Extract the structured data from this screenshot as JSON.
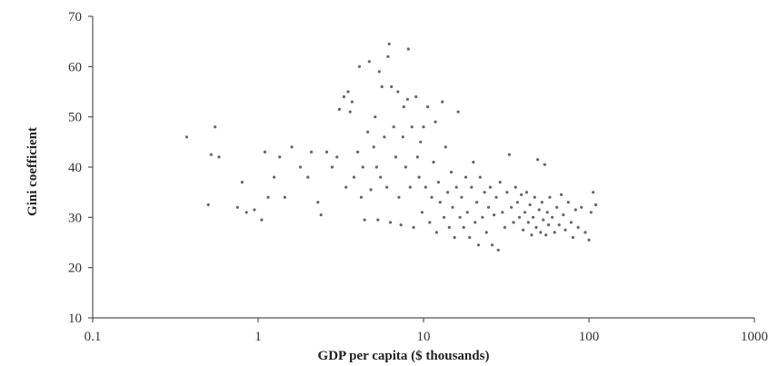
{
  "chart_data": {
    "type": "scatter",
    "title": "",
    "xlabel": "GDP per capita ($ thousands)",
    "ylabel": "Gini coefficient",
    "xscale": "log",
    "xlim": [
      0.1,
      1000
    ],
    "ylim": [
      10,
      70
    ],
    "x_ticks": [
      0.1,
      1,
      10,
      100,
      1000
    ],
    "x_tick_labels": [
      "0.1",
      "1",
      "10",
      "100",
      "1000"
    ],
    "y_ticks": [
      10,
      20,
      30,
      40,
      50,
      60,
      70
    ],
    "y_tick_labels": [
      "10",
      "20",
      "30",
      "40",
      "50",
      "60",
      "70"
    ],
    "grid": false,
    "legend": "none",
    "marker_color": "#666666",
    "points": [
      {
        "x": 0.37,
        "y": 46
      },
      {
        "x": 0.5,
        "y": 32.5
      },
      {
        "x": 0.52,
        "y": 42.5
      },
      {
        "x": 0.55,
        "y": 48
      },
      {
        "x": 0.58,
        "y": 42
      },
      {
        "x": 0.75,
        "y": 32
      },
      {
        "x": 0.8,
        "y": 37
      },
      {
        "x": 0.85,
        "y": 31
      },
      {
        "x": 0.95,
        "y": 31.5
      },
      {
        "x": 1.05,
        "y": 29.5
      },
      {
        "x": 1.1,
        "y": 43
      },
      {
        "x": 1.15,
        "y": 34
      },
      {
        "x": 1.25,
        "y": 38
      },
      {
        "x": 1.35,
        "y": 42
      },
      {
        "x": 1.45,
        "y": 34
      },
      {
        "x": 1.6,
        "y": 44
      },
      {
        "x": 1.8,
        "y": 40
      },
      {
        "x": 2.0,
        "y": 38
      },
      {
        "x": 2.1,
        "y": 43
      },
      {
        "x": 2.3,
        "y": 33
      },
      {
        "x": 2.4,
        "y": 30.5
      },
      {
        "x": 2.6,
        "y": 43
      },
      {
        "x": 2.8,
        "y": 40
      },
      {
        "x": 3.0,
        "y": 42
      },
      {
        "x": 3.1,
        "y": 51.5
      },
      {
        "x": 3.3,
        "y": 54
      },
      {
        "x": 3.4,
        "y": 36
      },
      {
        "x": 3.5,
        "y": 55
      },
      {
        "x": 3.6,
        "y": 51
      },
      {
        "x": 3.7,
        "y": 53
      },
      {
        "x": 3.8,
        "y": 38
      },
      {
        "x": 4.0,
        "y": 43
      },
      {
        "x": 4.1,
        "y": 60
      },
      {
        "x": 4.2,
        "y": 34
      },
      {
        "x": 4.3,
        "y": 40
      },
      {
        "x": 4.4,
        "y": 29.5
      },
      {
        "x": 4.6,
        "y": 47
      },
      {
        "x": 4.7,
        "y": 61
      },
      {
        "x": 4.8,
        "y": 35.5
      },
      {
        "x": 5.0,
        "y": 44
      },
      {
        "x": 5.1,
        "y": 50
      },
      {
        "x": 5.2,
        "y": 40
      },
      {
        "x": 5.3,
        "y": 29.5
      },
      {
        "x": 5.4,
        "y": 59
      },
      {
        "x": 5.5,
        "y": 38
      },
      {
        "x": 5.6,
        "y": 56
      },
      {
        "x": 5.8,
        "y": 46
      },
      {
        "x": 6.0,
        "y": 36
      },
      {
        "x": 6.1,
        "y": 62
      },
      {
        "x": 6.2,
        "y": 64.5
      },
      {
        "x": 6.3,
        "y": 29
      },
      {
        "x": 6.4,
        "y": 56
      },
      {
        "x": 6.6,
        "y": 48
      },
      {
        "x": 6.8,
        "y": 42
      },
      {
        "x": 7.0,
        "y": 55
      },
      {
        "x": 7.1,
        "y": 34
      },
      {
        "x": 7.3,
        "y": 28.5
      },
      {
        "x": 7.5,
        "y": 46
      },
      {
        "x": 7.6,
        "y": 52
      },
      {
        "x": 7.8,
        "y": 40
      },
      {
        "x": 8.0,
        "y": 53.5
      },
      {
        "x": 8.1,
        "y": 63.5
      },
      {
        "x": 8.3,
        "y": 36
      },
      {
        "x": 8.5,
        "y": 48
      },
      {
        "x": 8.7,
        "y": 28
      },
      {
        "x": 9.0,
        "y": 54
      },
      {
        "x": 9.2,
        "y": 42
      },
      {
        "x": 9.4,
        "y": 38
      },
      {
        "x": 9.6,
        "y": 45
      },
      {
        "x": 9.8,
        "y": 31
      },
      {
        "x": 10.0,
        "y": 48
      },
      {
        "x": 10.3,
        "y": 36
      },
      {
        "x": 10.6,
        "y": 52
      },
      {
        "x": 10.9,
        "y": 29
      },
      {
        "x": 11.2,
        "y": 34
      },
      {
        "x": 11.5,
        "y": 41
      },
      {
        "x": 11.8,
        "y": 49
      },
      {
        "x": 12.0,
        "y": 27
      },
      {
        "x": 12.3,
        "y": 37
      },
      {
        "x": 12.6,
        "y": 33
      },
      {
        "x": 13.0,
        "y": 53
      },
      {
        "x": 13.3,
        "y": 30
      },
      {
        "x": 13.6,
        "y": 44
      },
      {
        "x": 14.0,
        "y": 35
      },
      {
        "x": 14.3,
        "y": 28
      },
      {
        "x": 14.7,
        "y": 39
      },
      {
        "x": 15.0,
        "y": 32
      },
      {
        "x": 15.4,
        "y": 26
      },
      {
        "x": 15.8,
        "y": 36
      },
      {
        "x": 16.2,
        "y": 51
      },
      {
        "x": 16.6,
        "y": 30
      },
      {
        "x": 17.0,
        "y": 34
      },
      {
        "x": 17.5,
        "y": 28
      },
      {
        "x": 18.0,
        "y": 38
      },
      {
        "x": 18.4,
        "y": 31
      },
      {
        "x": 19.0,
        "y": 26
      },
      {
        "x": 19.5,
        "y": 36
      },
      {
        "x": 20.0,
        "y": 41
      },
      {
        "x": 20.5,
        "y": 29
      },
      {
        "x": 21.0,
        "y": 33
      },
      {
        "x": 21.5,
        "y": 24.5
      },
      {
        "x": 22.0,
        "y": 38
      },
      {
        "x": 22.7,
        "y": 30
      },
      {
        "x": 23.4,
        "y": 35
      },
      {
        "x": 24.0,
        "y": 27
      },
      {
        "x": 24.7,
        "y": 32
      },
      {
        "x": 25.3,
        "y": 36
      },
      {
        "x": 26.0,
        "y": 24.5
      },
      {
        "x": 26.7,
        "y": 30.5
      },
      {
        "x": 27.5,
        "y": 34
      },
      {
        "x": 28.3,
        "y": 23.5
      },
      {
        "x": 29.0,
        "y": 37
      },
      {
        "x": 30.0,
        "y": 31
      },
      {
        "x": 31.0,
        "y": 28
      },
      {
        "x": 32.0,
        "y": 35
      },
      {
        "x": 33.0,
        "y": 42.5
      },
      {
        "x": 34.0,
        "y": 32
      },
      {
        "x": 35.0,
        "y": 29
      },
      {
        "x": 36.0,
        "y": 36
      },
      {
        "x": 37.0,
        "y": 33
      },
      {
        "x": 38.0,
        "y": 30
      },
      {
        "x": 39.0,
        "y": 34.5
      },
      {
        "x": 40.0,
        "y": 27.5
      },
      {
        "x": 41.0,
        "y": 31
      },
      {
        "x": 42.0,
        "y": 35
      },
      {
        "x": 43.0,
        "y": 29
      },
      {
        "x": 44.0,
        "y": 32.5
      },
      {
        "x": 45.0,
        "y": 26.5
      },
      {
        "x": 46.0,
        "y": 30
      },
      {
        "x": 47.0,
        "y": 34
      },
      {
        "x": 48.0,
        "y": 28
      },
      {
        "x": 49.0,
        "y": 41.5
      },
      {
        "x": 50.0,
        "y": 31.5
      },
      {
        "x": 51.0,
        "y": 27
      },
      {
        "x": 52.0,
        "y": 33
      },
      {
        "x": 53.0,
        "y": 29.5
      },
      {
        "x": 54.0,
        "y": 40.5
      },
      {
        "x": 55.0,
        "y": 26.5
      },
      {
        "x": 56.0,
        "y": 31
      },
      {
        "x": 57.0,
        "y": 28.5
      },
      {
        "x": 58.0,
        "y": 34
      },
      {
        "x": 60.0,
        "y": 30
      },
      {
        "x": 62.0,
        "y": 27
      },
      {
        "x": 64.0,
        "y": 32
      },
      {
        "x": 66.0,
        "y": 28.5
      },
      {
        "x": 68.0,
        "y": 34.5
      },
      {
        "x": 70.0,
        "y": 30.5
      },
      {
        "x": 72.0,
        "y": 27.5
      },
      {
        "x": 75.0,
        "y": 33
      },
      {
        "x": 78.0,
        "y": 29
      },
      {
        "x": 80.0,
        "y": 26
      },
      {
        "x": 83.0,
        "y": 31.5
      },
      {
        "x": 86.0,
        "y": 28
      },
      {
        "x": 90.0,
        "y": 32
      },
      {
        "x": 95.0,
        "y": 27
      },
      {
        "x": 100.0,
        "y": 25.5
      },
      {
        "x": 103.0,
        "y": 31
      },
      {
        "x": 106.0,
        "y": 35
      },
      {
        "x": 110.0,
        "y": 32.5
      }
    ]
  }
}
